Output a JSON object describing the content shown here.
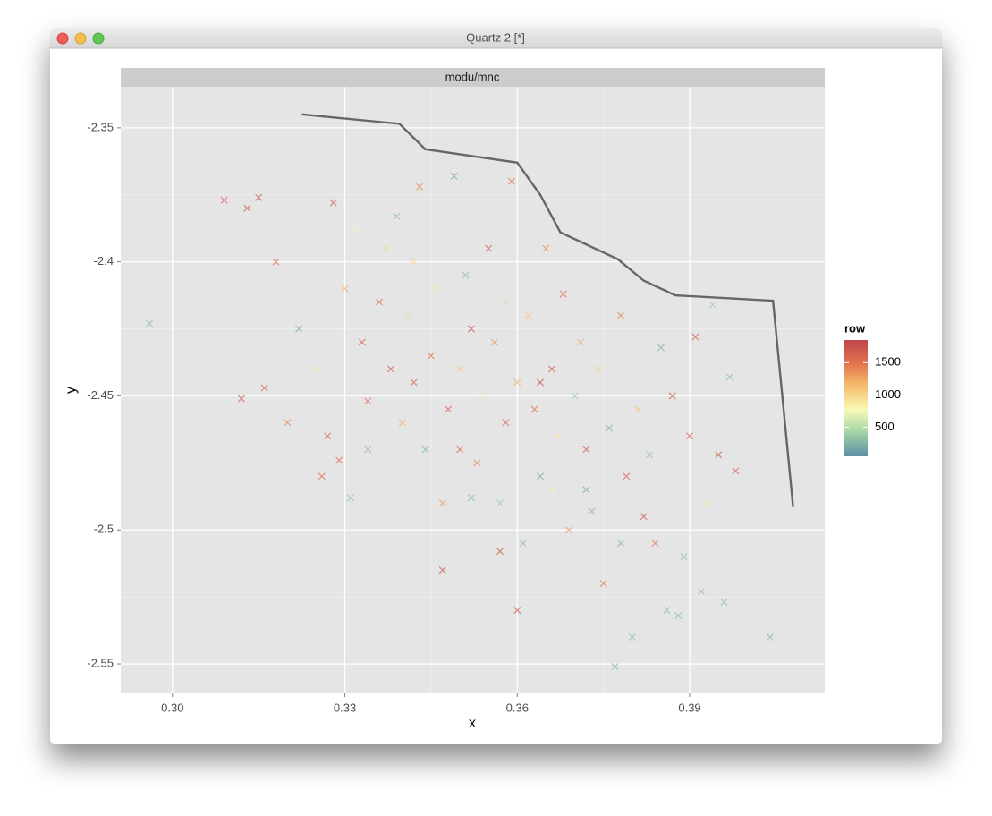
{
  "window": {
    "title": "Quartz 2 [*]"
  },
  "chart_data": {
    "type": "scatter",
    "facet_label": "modu/mnc",
    "x_label": "x",
    "y_label": "y",
    "xlim": [
      0.291,
      0.4135
    ],
    "ylim": [
      -2.561,
      -2.3347
    ],
    "xticks": [
      {
        "value": 0.3,
        "label": "0.30"
      },
      0.33,
      0.36,
      0.39
    ],
    "yticks": [
      -2.35,
      -2.4,
      -2.45,
      -2.5,
      -2.55
    ],
    "grid": true,
    "x": [
      0.296,
      0.313,
      0.315,
      0.309,
      0.318,
      0.312,
      0.316,
      0.32,
      0.322,
      0.325,
      0.328,
      0.327,
      0.326,
      0.33,
      0.332,
      0.333,
      0.334,
      0.336,
      0.337,
      0.339,
      0.338,
      0.34,
      0.341,
      0.342,
      0.343,
      0.344,
      0.345,
      0.346,
      0.347,
      0.347,
      0.348,
      0.349,
      0.35,
      0.351,
      0.352,
      0.353,
      0.354,
      0.355,
      0.356,
      0.357,
      0.358,
      0.359,
      0.36,
      0.36,
      0.361,
      0.362,
      0.363,
      0.364,
      0.365,
      0.366,
      0.367,
      0.368,
      0.369,
      0.37,
      0.371,
      0.372,
      0.373,
      0.374,
      0.375,
      0.376,
      0.377,
      0.378,
      0.378,
      0.379,
      0.38,
      0.381,
      0.382,
      0.383,
      0.384,
      0.385,
      0.386,
      0.387,
      0.388,
      0.389,
      0.39,
      0.391,
      0.392,
      0.393,
      0.394,
      0.395,
      0.396,
      0.397,
      0.398,
      0.404,
      0.331,
      0.329,
      0.352,
      0.357,
      0.366,
      0.372,
      0.342,
      0.334,
      0.358,
      0.364,
      0.35
    ],
    "y": [
      -2.423,
      -2.38,
      -2.376,
      -2.377,
      -2.4,
      -2.451,
      -2.447,
      -2.46,
      -2.425,
      -2.44,
      -2.378,
      -2.465,
      -2.48,
      -2.41,
      -2.388,
      -2.43,
      -2.47,
      -2.415,
      -2.395,
      -2.383,
      -2.44,
      -2.46,
      -2.42,
      -2.445,
      -2.372,
      -2.47,
      -2.435,
      -2.41,
      -2.49,
      -2.515,
      -2.455,
      -2.368,
      -2.44,
      -2.405,
      -2.425,
      -2.475,
      -2.45,
      -2.395,
      -2.43,
      -2.49,
      -2.46,
      -2.37,
      -2.445,
      -2.53,
      -2.505,
      -2.42,
      -2.455,
      -2.48,
      -2.395,
      -2.44,
      -2.465,
      -2.412,
      -2.5,
      -2.45,
      -2.43,
      -2.47,
      -2.493,
      -2.44,
      -2.52,
      -2.462,
      -2.551,
      -2.505,
      -2.42,
      -2.48,
      -2.54,
      -2.455,
      -2.495,
      -2.472,
      -2.505,
      -2.432,
      -2.53,
      -2.45,
      -2.532,
      -2.51,
      -2.465,
      -2.428,
      -2.523,
      -2.49,
      -2.416,
      -2.472,
      -2.527,
      -2.443,
      -2.478,
      -2.54,
      -2.488,
      -2.474,
      -2.488,
      -2.508,
      -2.485,
      -2.485,
      -2.4,
      -2.452,
      -2.415,
      -2.445,
      -2.47
    ],
    "color_values": [
      300,
      1700,
      1750,
      1600,
      1500,
      1700,
      1600,
      1400,
      200,
      900,
      1700,
      1600,
      1500,
      1200,
      800,
      1650,
      300,
      1500,
      1000,
      300,
      1700,
      1200,
      600,
      1600,
      1400,
      250,
      1500,
      900,
      1300,
      1700,
      1600,
      200,
      1100,
      300,
      1750,
      1400,
      700,
      1650,
      1300,
      400,
      1600,
      1500,
      1200,
      1700,
      300,
      1100,
      1500,
      200,
      1400,
      1700,
      900,
      1600,
      1300,
      400,
      1200,
      1650,
      300,
      1000,
      1500,
      200,
      300,
      250,
      1400,
      1600,
      300,
      1100,
      1700,
      350,
      1500,
      250,
      300,
      1700,
      300,
      300,
      1600,
      1700,
      300,
      900,
      400,
      1700,
      300,
      300,
      1600,
      300,
      350,
      1550,
      300,
      1700,
      800,
      200,
      1000,
      1500,
      600,
      1750,
      1600
    ],
    "colorbar": {
      "title": "row",
      "lim": [
        50,
        1850
      ],
      "ticks": [
        500,
        1000,
        1500
      ],
      "colors": [
        "#5e8fa8",
        "#9fd2a4",
        "#f9f9b8",
        "#f7bf6e",
        "#e2734e",
        "#c0464b"
      ]
    },
    "line": {
      "color": "#666666",
      "x": [
        0.3225,
        0.3395,
        0.344,
        0.36,
        0.364,
        0.3675,
        0.3775,
        0.382,
        0.3875,
        0.4045,
        0.408
      ],
      "y": [
        -2.345,
        -2.3485,
        -2.358,
        -2.363,
        -2.375,
        -2.389,
        -2.399,
        -2.407,
        -2.4125,
        -2.4145,
        -2.4915
      ]
    }
  }
}
